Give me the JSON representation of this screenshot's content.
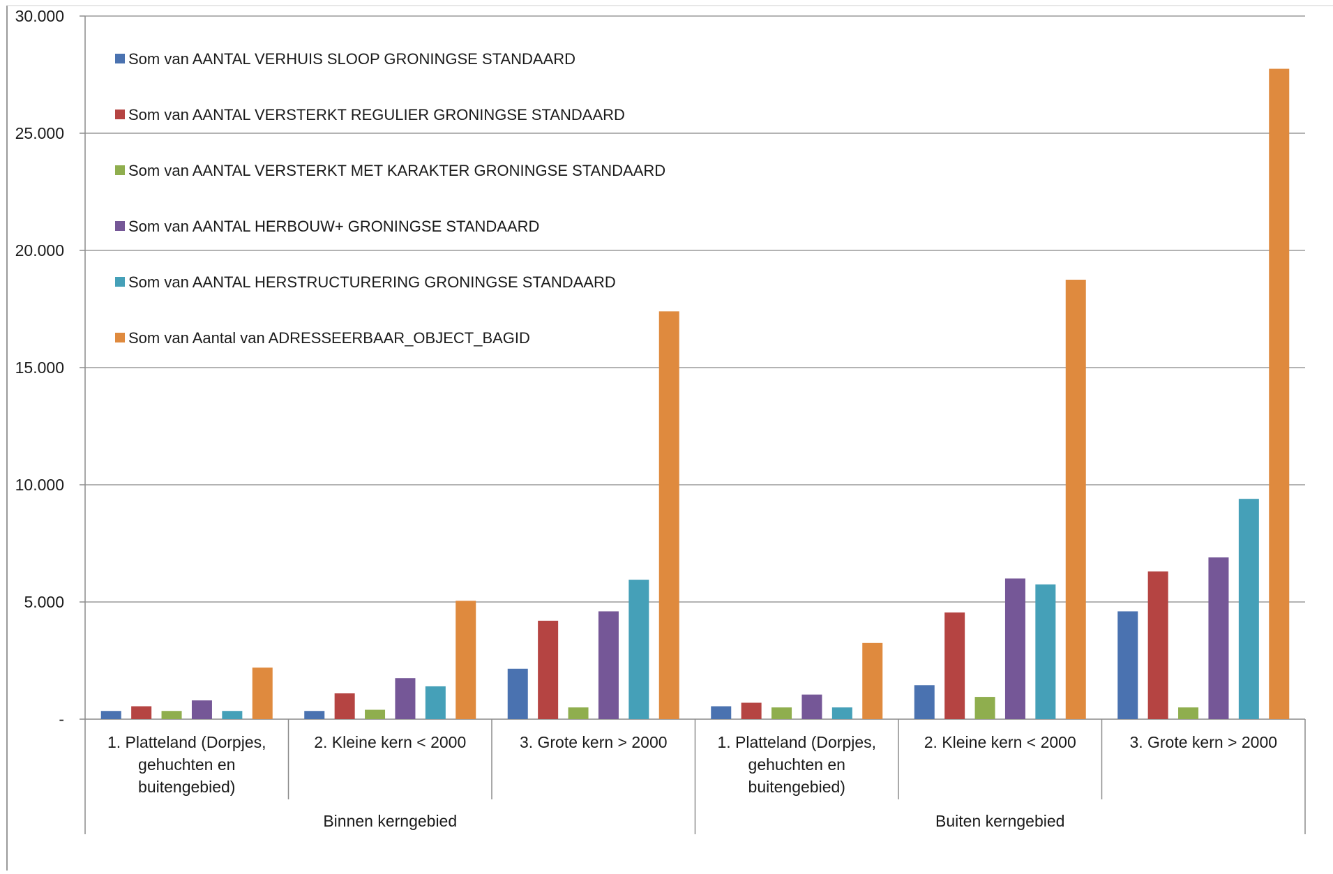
{
  "chart_data": {
    "type": "bar",
    "title": "",
    "xlabel": "",
    "ylabel": "",
    "ylim": [
      0,
      30000
    ],
    "yticks": [
      0,
      5000,
      10000,
      15000,
      20000,
      25000,
      30000
    ],
    "ytick_labels": [
      "-",
      "5.000",
      "10.000",
      "15.000",
      "20.000",
      "25.000",
      "30.000"
    ],
    "grid": "horizontal",
    "legend_position": "top-left",
    "groups": [
      {
        "label": "Binnen kerngebied",
        "categories": [
          0,
          1,
          2
        ]
      },
      {
        "label": "Buiten kerngebied",
        "categories": [
          3,
          4,
          5
        ]
      }
    ],
    "categories": [
      [
        "1. Platteland (Dorpjes,",
        "gehuchten en",
        "buitengebied)"
      ],
      [
        "2. Kleine kern < 2000"
      ],
      [
        "3. Grote kern > 2000"
      ],
      [
        "1. Platteland (Dorpjes,",
        "gehuchten en",
        "buitengebied)"
      ],
      [
        "2. Kleine kern < 2000"
      ],
      [
        "3. Grote kern > 2000"
      ]
    ],
    "series": [
      {
        "name": "Som van AANTAL VERHUIS SLOOP GRONINGSE STANDAARD",
        "color": "#4a72b0",
        "values": [
          350,
          350,
          2150,
          550,
          1450,
          4600
        ]
      },
      {
        "name": "Som van AANTAL VERSTERKT REGULIER GRONINGSE STANDAARD",
        "color": "#b54442",
        "values": [
          550,
          1100,
          4200,
          700,
          4550,
          6300
        ]
      },
      {
        "name": "Som van AANTAL VERSTERKT MET KARAKTER GRONINGSE STANDAARD",
        "color": "#8fae4e",
        "values": [
          350,
          400,
          500,
          500,
          950,
          500
        ]
      },
      {
        "name": "Som van AANTAL HERBOUW+ GRONINGSE STANDAARD",
        "color": "#755797",
        "values": [
          800,
          1750,
          4600,
          1050,
          6000,
          6900
        ]
      },
      {
        "name": "Som van AANTAL HERSTRUCTURERING GRONINGSE STANDAARD",
        "color": "#45a0b8",
        "values": [
          350,
          1400,
          5950,
          500,
          5750,
          9400
        ]
      },
      {
        "name": "Som van Aantal van ADRESSEERBAAR_OBJECT_BAGID",
        "color": "#df8a3e",
        "values": [
          2200,
          5050,
          17400,
          3250,
          18750,
          27750
        ]
      }
    ]
  },
  "colors": {
    "grid": "#9a9a9a",
    "axis": "#8c8c8c",
    "background": "#ffffff"
  }
}
